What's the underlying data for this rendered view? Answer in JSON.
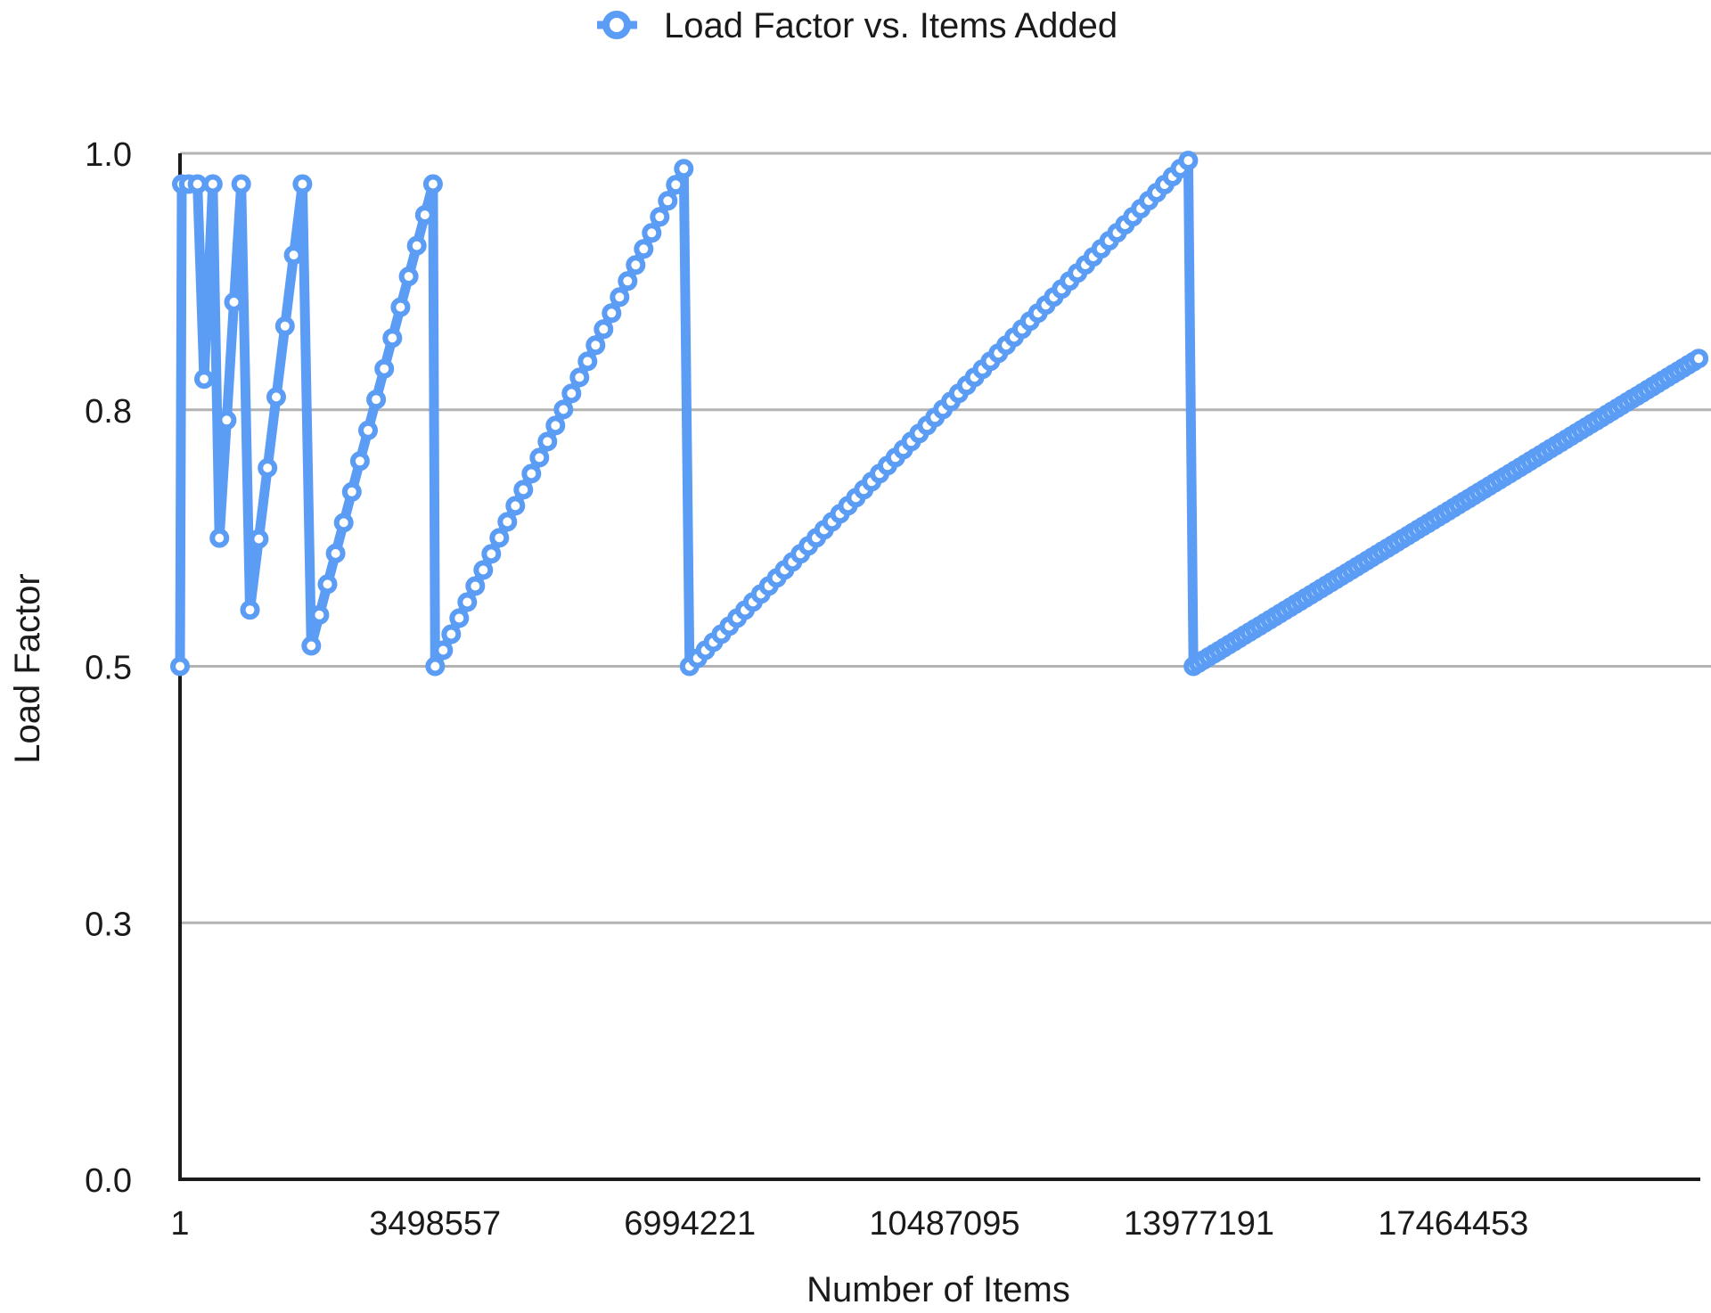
{
  "chart_data": {
    "type": "line",
    "legend": {
      "label": "Load Factor vs. Items Added",
      "placement": "top-center"
    },
    "xlabel": "Number of Items",
    "ylabel": "Load Factor",
    "xlim": [
      1,
      21000000
    ],
    "ylim": [
      0,
      1
    ],
    "x_ticks": [
      {
        "value": 1,
        "label": "1"
      },
      {
        "value": 3498557,
        "label": "3498557"
      },
      {
        "value": 6994221,
        "label": "6994221"
      },
      {
        "value": 10487095,
        "label": "10487095"
      },
      {
        "value": 13977191,
        "label": "13977191"
      },
      {
        "value": 17464453,
        "label": "17464453"
      }
    ],
    "y_ticks": [
      {
        "value": 0.0,
        "label": "0.0"
      },
      {
        "value": 0.25,
        "label": "0.3"
      },
      {
        "value": 0.5,
        "label": "0.5"
      },
      {
        "value": 0.75,
        "label": "0.8"
      },
      {
        "value": 1.0,
        "label": "1.0"
      }
    ],
    "grid": "horizontal",
    "colors": {
      "series": "#5b9cf5",
      "grid": "#b3b3b3",
      "axis": "#1a1a1a"
    },
    "series": [
      {
        "name": "Load Factor vs. Items Added",
        "segments": [
          {
            "x_start": 1,
            "x_end": 25000,
            "y_start": 0.5,
            "y_end": 0.97,
            "count": 2
          },
          {
            "x_start": 120000,
            "x_end": 240000,
            "y_start": 0.97,
            "y_end": 0.97,
            "count": 2
          },
          {
            "x_start": 330000,
            "x_end": 450000,
            "y_start": 0.78,
            "y_end": 0.97,
            "count": 2
          },
          {
            "x_start": 540000,
            "x_end": 840000,
            "y_start": 0.625,
            "y_end": 0.97,
            "count": 4
          },
          {
            "x_start": 960000,
            "x_end": 1680000,
            "y_start": 0.555,
            "y_end": 0.97,
            "count": 7
          },
          {
            "x_start": 1800000,
            "x_end": 3470000,
            "y_start": 0.52,
            "y_end": 0.97,
            "count": 16
          },
          {
            "x_start": 3500000,
            "x_end": 6910000,
            "y_start": 0.5,
            "y_end": 0.985,
            "count": 32
          },
          {
            "x_start": 6990000,
            "x_end": 13830000,
            "y_start": 0.5,
            "y_end": 0.993,
            "count": 64
          },
          {
            "x_start": 13900000,
            "x_end": 20830000,
            "y_start": 0.5,
            "y_end": 0.8,
            "count": 100
          }
        ]
      }
    ]
  }
}
